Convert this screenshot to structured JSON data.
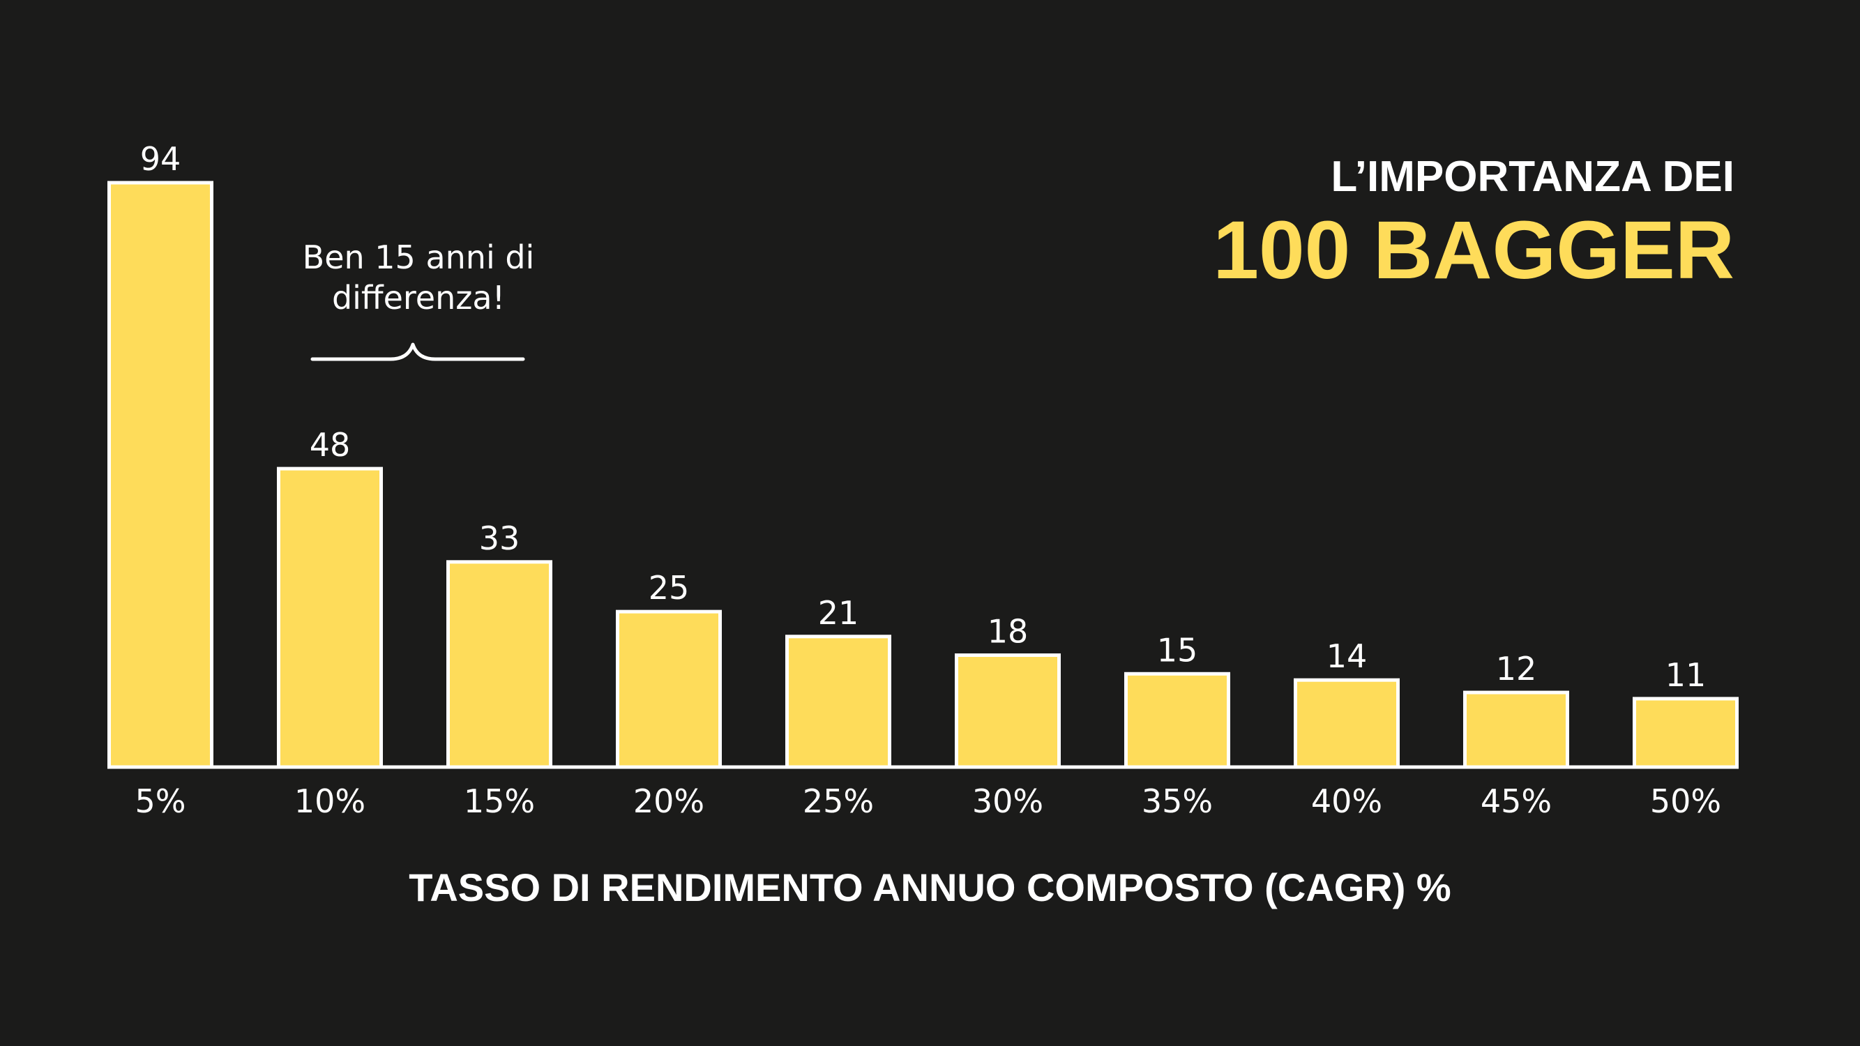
{
  "title": {
    "line1": "L’IMPORTANZA DEI",
    "line2": "100 BAGGER"
  },
  "annotation": {
    "line1": "Ben 15 anni di",
    "line2": "differenza!"
  },
  "colors": {
    "background": "#1b1b1a",
    "bar_fill": "#fedc5a",
    "bar_stroke": "#ffffff",
    "title_accent": "#fedc5a",
    "text": "#ffffff"
  },
  "chart_data": {
    "type": "bar",
    "categories": [
      "5%",
      "10%",
      "15%",
      "20%",
      "25%",
      "30%",
      "35%",
      "40%",
      "45%",
      "50%"
    ],
    "values": [
      94,
      48,
      33,
      25,
      21,
      18,
      15,
      14,
      12,
      11
    ],
    "xlabel": "TASSO DI RENDIMENTO ANNUO COMPOSTO (CAGR) %",
    "ylabel": "",
    "ylim": [
      0,
      94
    ],
    "grid": false,
    "data_labels": true,
    "legend": "none"
  }
}
